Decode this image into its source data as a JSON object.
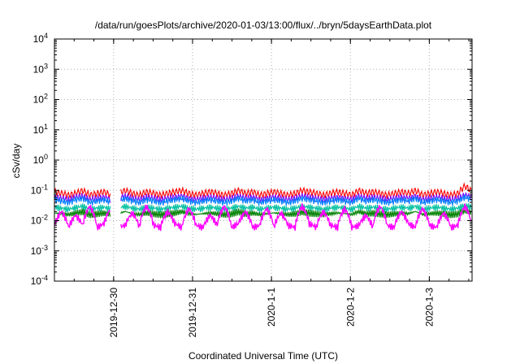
{
  "chart_data": {
    "type": "line",
    "title": "/data/run/goesPlots/archive/2020-01-03/13:00/flux/../bryn/5daysEarthData.plot",
    "xlabel": "Coordinated Universal Time (UTC)",
    "ylabel": "cSv/day",
    "yscale": "log",
    "ylim": [
      0.0001,
      10000
    ],
    "xlim": [
      "2019-12-29T06:00",
      "2020-01-03T13:00"
    ],
    "grid": true,
    "legend": "none",
    "y_ticks": [
      {
        "value": 0.0001,
        "mantissa": "10",
        "exp": "-4"
      },
      {
        "value": 0.001,
        "mantissa": "10",
        "exp": "-3"
      },
      {
        "value": 0.01,
        "mantissa": "10",
        "exp": "-2"
      },
      {
        "value": 0.1,
        "mantissa": "10",
        "exp": "-1"
      },
      {
        "value": 1,
        "mantissa": "10",
        "exp": "0"
      },
      {
        "value": 10,
        "mantissa": "10",
        "exp": "1"
      },
      {
        "value": 100,
        "mantissa": "10",
        "exp": "2"
      },
      {
        "value": 1000,
        "mantissa": "10",
        "exp": "3"
      },
      {
        "value": 10000,
        "mantissa": "10",
        "exp": "4"
      }
    ],
    "x_ticks": [
      {
        "value": "2019-12-30T00:00",
        "label": "2019-12-30"
      },
      {
        "value": "2019-12-31T00:00",
        "label": "2019-12-31"
      },
      {
        "value": "2020-01-01T00:00",
        "label": "2020-1-1"
      },
      {
        "value": "2020-01-02T00:00",
        "label": "2020-1-2"
      },
      {
        "value": "2020-01-03T00:00",
        "label": "2020-1-3"
      }
    ],
    "gap": [
      "2019-12-29T23:00",
      "2019-12-30T02:00"
    ],
    "series": [
      {
        "color": "#ff0000",
        "values": [
          0.09,
          0.08,
          0.07,
          0.08,
          0.1,
          0.07,
          0.08,
          0.09,
          0.07,
          0.08,
          0.1,
          0.08,
          0.07,
          0.09,
          0.08,
          0.07,
          0.08,
          0.09,
          0.1,
          0.08,
          0.07,
          0.08,
          0.09,
          0.08,
          0.07,
          0.08,
          0.1,
          0.08,
          0.09,
          0.07,
          0.08,
          0.09,
          0.08,
          0.07,
          0.08,
          0.1,
          0.09,
          0.08,
          0.07,
          0.08,
          0.09,
          0.08,
          0.07,
          0.1,
          0.08,
          0.09,
          0.08,
          0.07,
          0.08,
          0.09,
          0.08,
          0.1,
          0.07,
          0.08,
          0.09,
          0.08,
          0.07,
          0.08,
          0.14,
          0.09
        ]
      },
      {
        "color": "#8000ff",
        "values": [
          0.06,
          0.055,
          0.05,
          0.06,
          0.065,
          0.05,
          0.055,
          0.06,
          0.05,
          0.055,
          0.065,
          0.055,
          0.05,
          0.06,
          0.055,
          0.05,
          0.055,
          0.06,
          0.065,
          0.055,
          0.05,
          0.055,
          0.06,
          0.055,
          0.05,
          0.055,
          0.065,
          0.055,
          0.06,
          0.05,
          0.055,
          0.06,
          0.055,
          0.05,
          0.055,
          0.065,
          0.06,
          0.055,
          0.05,
          0.055,
          0.06,
          0.055,
          0.05,
          0.065,
          0.055,
          0.06,
          0.055,
          0.05,
          0.055,
          0.06,
          0.055,
          0.065,
          0.05,
          0.055,
          0.06,
          0.055,
          0.05,
          0.055,
          0.07,
          0.06
        ]
      },
      {
        "color": "#0080ff",
        "values": [
          0.05,
          0.045,
          0.04,
          0.05,
          0.055,
          0.04,
          0.045,
          0.05,
          0.04,
          0.045,
          0.055,
          0.045,
          0.04,
          0.05,
          0.045,
          0.04,
          0.045,
          0.05,
          0.055,
          0.045,
          0.04,
          0.045,
          0.05,
          0.045,
          0.04,
          0.045,
          0.055,
          0.045,
          0.05,
          0.04,
          0.045,
          0.05,
          0.045,
          0.04,
          0.045,
          0.055,
          0.05,
          0.045,
          0.04,
          0.045,
          0.05,
          0.045,
          0.04,
          0.055,
          0.045,
          0.05,
          0.045,
          0.04,
          0.045,
          0.05,
          0.045,
          0.055,
          0.04,
          0.045,
          0.05,
          0.045,
          0.04,
          0.045,
          0.06,
          0.05
        ]
      },
      {
        "color": "#00c0a0",
        "values": [
          0.028,
          0.026,
          0.024,
          0.027,
          0.03,
          0.024,
          0.026,
          0.028,
          0.024,
          0.026,
          0.03,
          0.026,
          0.024,
          0.028,
          0.026,
          0.024,
          0.026,
          0.028,
          0.03,
          0.026,
          0.024,
          0.026,
          0.028,
          0.026,
          0.024,
          0.026,
          0.03,
          0.026,
          0.028,
          0.024,
          0.026,
          0.028,
          0.026,
          0.024,
          0.026,
          0.03,
          0.028,
          0.026,
          0.024,
          0.026,
          0.028,
          0.026,
          0.024,
          0.03,
          0.026,
          0.028,
          0.026,
          0.024,
          0.026,
          0.028,
          0.026,
          0.03,
          0.024,
          0.026,
          0.028,
          0.026,
          0.024,
          0.026,
          0.032,
          0.028
        ]
      },
      {
        "color": "#008000",
        "values": [
          0.018,
          0.017,
          0.016,
          0.018,
          0.02,
          0.016,
          0.017,
          0.018,
          0.016,
          0.017,
          0.02,
          0.017,
          0.016,
          0.018,
          0.017,
          0.016,
          0.017,
          0.018,
          0.02,
          0.017,
          0.016,
          0.017,
          0.018,
          0.017,
          0.016,
          0.017,
          0.02,
          0.017,
          0.018,
          0.016,
          0.017,
          0.018,
          0.017,
          0.016,
          0.017,
          0.02,
          0.018,
          0.017,
          0.016,
          0.017,
          0.018,
          0.017,
          0.016,
          0.02,
          0.017,
          0.018,
          0.017,
          0.016,
          0.017,
          0.018,
          0.017,
          0.02,
          0.016,
          0.017,
          0.018,
          0.017,
          0.016,
          0.017,
          0.022,
          0.018
        ]
      },
      {
        "color": "#ff00ff",
        "values": [
          0.007,
          0.02,
          0.006,
          0.015,
          0.007,
          0.03,
          0.006,
          0.008,
          0.025,
          0.006,
          0.007,
          0.018,
          0.006,
          0.03,
          0.007,
          0.006,
          0.02,
          0.008,
          0.006,
          0.025,
          0.007,
          0.006,
          0.015,
          0.007,
          0.03,
          0.006,
          0.008,
          0.02,
          0.006,
          0.007,
          0.025,
          0.006,
          0.018,
          0.007,
          0.006,
          0.03,
          0.008,
          0.006,
          0.02,
          0.007,
          0.006,
          0.025,
          0.006,
          0.007,
          0.015,
          0.006,
          0.03,
          0.007,
          0.006,
          0.02,
          0.008,
          0.006,
          0.025,
          0.007,
          0.006,
          0.018,
          0.006,
          0.007,
          0.03,
          0.006
        ]
      }
    ]
  }
}
